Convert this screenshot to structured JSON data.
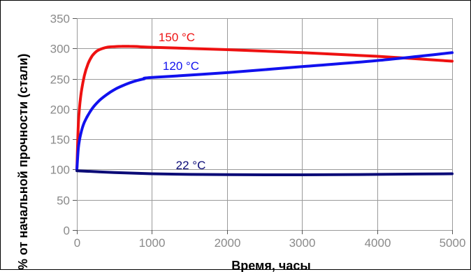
{
  "chart_data": {
    "type": "line",
    "title": "",
    "xlabel": "Время, часы",
    "ylabel": "% от начальной прочности (стали)",
    "xlim": [
      0,
      5000
    ],
    "ylim": [
      0,
      350
    ],
    "x_ticks": [
      0,
      1000,
      2000,
      3000,
      4000,
      5000
    ],
    "y_ticks": [
      0,
      50,
      100,
      150,
      200,
      250,
      300,
      350
    ],
    "grid": true,
    "legend": "inline labels",
    "series": [
      {
        "name": "150 °C",
        "color": "#ee1111",
        "x": [
          0,
          20,
          50,
          100,
          150,
          200,
          250,
          300,
          400,
          500,
          600,
          700,
          800,
          1000,
          2000,
          3000,
          4000,
          5000
        ],
        "y": [
          100,
          175,
          220,
          255,
          275,
          287,
          294,
          298,
          302,
          303,
          303.5,
          303.5,
          303.2,
          302,
          298,
          293,
          287,
          279
        ]
      },
      {
        "name": "120 °C",
        "color": "#1111ee",
        "x": [
          0,
          20,
          50,
          100,
          200,
          300,
          400,
          500,
          600,
          700,
          800,
          900,
          1000,
          2000,
          3000,
          4000,
          5000
        ],
        "y": [
          100,
          135,
          158,
          178,
          200,
          214,
          224,
          232,
          238,
          243,
          247,
          250,
          252,
          260,
          270,
          280,
          293
        ]
      },
      {
        "name": "22 °C",
        "color": "#0b0b77",
        "x": [
          0,
          500,
          1000,
          1500,
          2000,
          2500,
          3000,
          3500,
          4000,
          4500,
          5000
        ],
        "y": [
          98,
          95,
          93,
          92,
          91.5,
          91.3,
          91.2,
          91.5,
          92,
          92.5,
          93
        ]
      }
    ]
  }
}
